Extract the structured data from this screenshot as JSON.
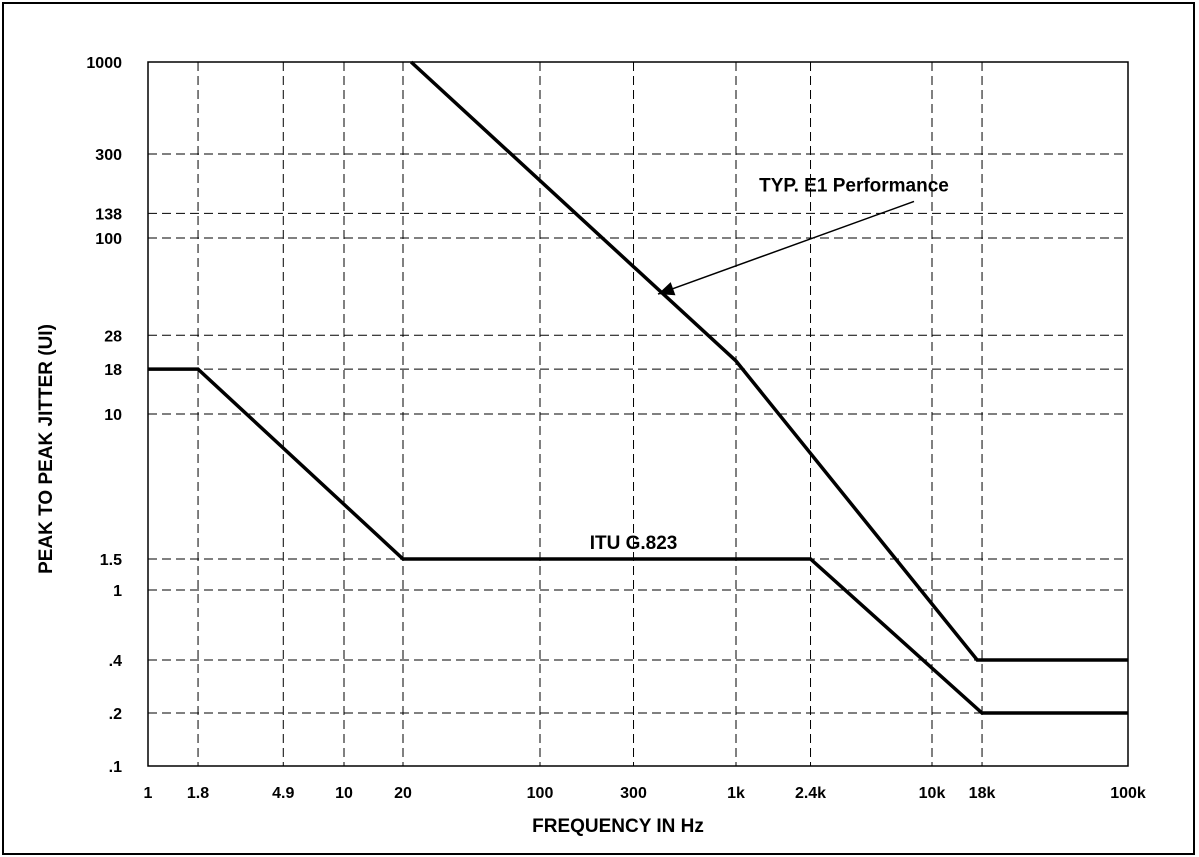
{
  "chart_data": {
    "type": "line",
    "xlabel": "FREQUENCY IN Hz",
    "ylabel": "PEAK TO PEAK JITTER (UI)",
    "x_scale": "log",
    "y_scale": "log",
    "xlim": [
      1,
      100000
    ],
    "ylim": [
      0.1,
      1000
    ],
    "grid": true,
    "x_ticks": [
      {
        "value": 1,
        "label": "1"
      },
      {
        "value": 1.8,
        "label": "1.8"
      },
      {
        "value": 4.9,
        "label": "4.9"
      },
      {
        "value": 10,
        "label": "10"
      },
      {
        "value": 20,
        "label": "20"
      },
      {
        "value": 100,
        "label": "100"
      },
      {
        "value": 300,
        "label": "300"
      },
      {
        "value": 1000,
        "label": "1k"
      },
      {
        "value": 2400,
        "label": "2.4k"
      },
      {
        "value": 10000,
        "label": "10k"
      },
      {
        "value": 18000,
        "label": "18k"
      },
      {
        "value": 100000,
        "label": "100k"
      }
    ],
    "y_ticks": [
      {
        "value": 1000,
        "label": "1000"
      },
      {
        "value": 300,
        "label": "300"
      },
      {
        "value": 138,
        "label": "138"
      },
      {
        "value": 100,
        "label": "100"
      },
      {
        "value": 28,
        "label": "28"
      },
      {
        "value": 18,
        "label": "18"
      },
      {
        "value": 10,
        "label": "10"
      },
      {
        "value": 1.5,
        "label": "1.5"
      },
      {
        "value": 1,
        "label": "1"
      },
      {
        "value": 0.4,
        "label": ".4"
      },
      {
        "value": 0.2,
        "label": ".2"
      },
      {
        "value": 0.1,
        "label": ".1"
      }
    ],
    "series": [
      {
        "name": "ITU G.823",
        "points": [
          [
            1,
            18
          ],
          [
            1.8,
            18
          ],
          [
            20,
            1.5
          ],
          [
            2400,
            1.5
          ],
          [
            18000,
            0.2
          ],
          [
            100000,
            0.2
          ]
        ]
      },
      {
        "name": "TYP. E1 Performance",
        "points": [
          [
            22,
            1000
          ],
          [
            1000,
            20
          ],
          [
            17000,
            0.4
          ],
          [
            100000,
            0.4
          ]
        ]
      }
    ],
    "annotations": [
      {
        "text": "ITU G.823",
        "at": [
          300,
          1.5
        ]
      },
      {
        "text": "TYP. E1 Performance",
        "at": [
          4000,
          170
        ],
        "arrow_to": [
          400,
          48
        ]
      }
    ]
  }
}
